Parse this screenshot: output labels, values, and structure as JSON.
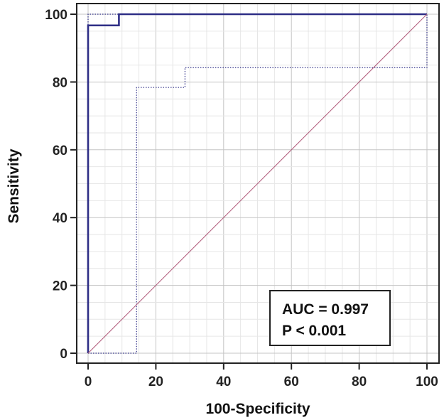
{
  "chart_data": {
    "type": "line",
    "title": "",
    "xlabel": "100-Specificity",
    "ylabel": "Sensitivity",
    "xlim": [
      0,
      100
    ],
    "ylim": [
      0,
      100
    ],
    "xticks": [
      0,
      20,
      40,
      60,
      80,
      100
    ],
    "yticks": [
      0,
      20,
      40,
      60,
      80,
      100
    ],
    "xtick_labels": [
      "0",
      "20",
      "40",
      "60",
      "80",
      "100"
    ],
    "ytick_labels": [
      "0",
      "20",
      "40",
      "60",
      "80",
      "100"
    ],
    "grid": true,
    "series": [
      {
        "name": "",
        "style": "solid",
        "color": "#2e2e86",
        "x": [
          0,
          0,
          9.1,
          9.1,
          100
        ],
        "y": [
          0,
          96.7,
          96.7,
          100,
          100
        ]
      },
      {
        "name": "",
        "style": "dotted",
        "color": "#2e2e86",
        "x": [
          0,
          0,
          100,
          100
        ],
        "y": [
          0,
          100,
          100,
          100
        ]
      },
      {
        "name": "",
        "style": "dotted",
        "color": "#2e2e86",
        "x": [
          0,
          14.3,
          14.3,
          28.6,
          28.6,
          100,
          100
        ],
        "y": [
          0,
          0,
          78.4,
          78.4,
          84.3,
          84.3,
          100
        ]
      },
      {
        "name": "",
        "style": "diagonal-reference",
        "color": "#b05a7a",
        "x": [
          0,
          100
        ],
        "y": [
          0,
          100
        ]
      }
    ],
    "annotations": {
      "auc": "AUC = 0.997",
      "p": "P < 0.001"
    }
  }
}
